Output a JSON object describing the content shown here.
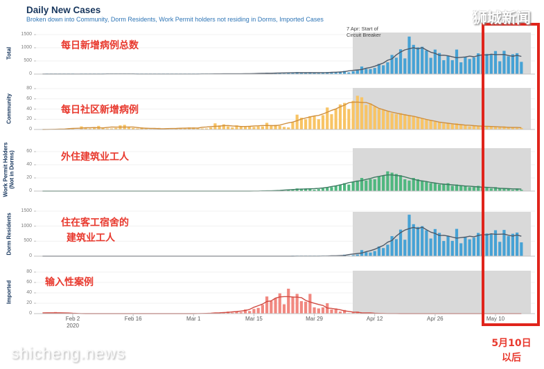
{
  "header": {
    "title": "Daily New Cases",
    "subtitle": "Broken down into Community, Dorm Residents, Work Permit holders not residing in Dorms, Imported Cases"
  },
  "watermarks": {
    "top_right": "狮城新闻",
    "bottom_left": "shicheng.news"
  },
  "annotations": {
    "circuit_breaker_line1": "7 Apr: Start of",
    "circuit_breaker_line2": "Circuit Breaker",
    "total": "每日新增病例总数",
    "community": "每日社区新增病例",
    "work_permit": "外住建筑业工人",
    "dorm_line1": "住在客工宿舍的",
    "dorm_line2": "建筑业工人",
    "imported": "输入性案例",
    "highlight_line1": "5月10日",
    "highlight_line2": "以后"
  },
  "colors": {
    "accent_red": "#e0241b",
    "annotation_red": "#e8392e",
    "title_navy": "#17365d",
    "subtitle_blue": "#2e75b6",
    "shaded_gray": "#d9d9d9"
  },
  "chart_data": {
    "type": "bar",
    "title": "Daily New Cases",
    "x_range": [
      "Jan 26",
      "May 16"
    ],
    "x_tick_labels": [
      "Feb 2",
      "Feb 16",
      "Mar 1",
      "Mar 15",
      "Mar 29",
      "Apr 12",
      "Apr 26",
      "May 10"
    ],
    "x_year_label": "2020",
    "grid": false,
    "legend": "none",
    "shaded_region": {
      "start_index": 72,
      "label": "7 Apr: Start of Circuit Breaker"
    },
    "panels": [
      {
        "id": "total",
        "row_label": "Total",
        "y_ticks": [
          0,
          500,
          1000,
          1500
        ],
        "ylim": [
          0,
          1580
        ],
        "bar_color": "#46a2d5",
        "line_color": "#4d5866",
        "values": [
          0,
          1,
          2,
          3,
          3,
          3,
          2,
          2,
          0,
          6,
          4,
          2,
          3,
          7,
          3,
          2,
          2,
          3,
          8,
          9,
          5,
          3,
          2,
          4,
          3,
          1,
          1,
          3,
          1,
          1,
          1,
          2,
          3,
          2,
          4,
          4,
          2,
          2,
          2,
          5,
          13,
          9,
          12,
          10,
          6,
          12,
          9,
          13,
          12,
          14,
          17,
          23,
          47,
          32,
          40,
          47,
          23,
          54,
          49,
          73,
          52,
          49,
          70,
          42,
          35,
          47,
          74,
          49,
          65,
          75,
          120,
          66,
          106,
          142,
          287,
          198,
          191,
          233,
          386,
          334,
          447,
          728,
          623,
          942,
          596,
          1426,
          1111,
          1016,
          1037,
          897,
          618,
          931,
          799,
          528,
          690,
          528,
          932,
          447,
          657,
          573,
          632,
          788,
          741,
          768,
          753,
          876,
          486,
          884,
          675,
          752,
          793,
          465
        ]
      },
      {
        "id": "community",
        "row_label": "Community",
        "y_ticks": [
          0,
          20,
          40,
          60,
          80
        ],
        "ylim": [
          0,
          80
        ],
        "bar_color": "#f8c465",
        "line_color": "#cf8f3e",
        "values": [
          0,
          0,
          0,
          0,
          1,
          1,
          1,
          2,
          0,
          6,
          4,
          2,
          3,
          7,
          3,
          2,
          2,
          3,
          8,
          9,
          5,
          3,
          2,
          4,
          3,
          1,
          1,
          3,
          1,
          1,
          1,
          2,
          3,
          2,
          4,
          4,
          2,
          2,
          2,
          4,
          12,
          8,
          10,
          6,
          4,
          8,
          6,
          5,
          7,
          5,
          6,
          6,
          13,
          8,
          9,
          7,
          5,
          4,
          14,
          29,
          23,
          20,
          26,
          26,
          20,
          28,
          43,
          30,
          40,
          49,
          52,
          40,
          56,
          66,
          63,
          48,
          51,
          45,
          40,
          38,
          35,
          32,
          30,
          32,
          30,
          28,
          25,
          24,
          22,
          20,
          18,
          15,
          14,
          12,
          12,
          10,
          12,
          10,
          8,
          6,
          8,
          6,
          8,
          6,
          6,
          5,
          4,
          6,
          4,
          4,
          3,
          3
        ]
      },
      {
        "id": "work_permit",
        "row_label": "Work Permit Holders",
        "row_label2": "(Not in Dorms)",
        "y_ticks": [
          0,
          20,
          40,
          60
        ],
        "ylim": [
          0,
          65
        ],
        "bar_color": "#4fb77f",
        "line_color": "#3c7a60",
        "values": [
          0,
          0,
          0,
          0,
          0,
          0,
          0,
          0,
          0,
          0,
          0,
          0,
          0,
          0,
          0,
          0,
          0,
          0,
          0,
          0,
          0,
          0,
          0,
          0,
          0,
          0,
          0,
          0,
          0,
          0,
          0,
          0,
          0,
          0,
          0,
          0,
          0,
          0,
          0,
          0,
          0,
          0,
          0,
          0,
          0,
          0,
          0,
          0,
          0,
          0,
          0,
          0,
          1,
          0,
          1,
          1,
          0,
          2,
          2,
          4,
          3,
          4,
          4,
          2,
          3,
          4,
          6,
          6,
          8,
          10,
          12,
          10,
          14,
          16,
          20,
          16,
          18,
          18,
          22,
          24,
          30,
          28,
          26,
          24,
          18,
          16,
          20,
          18,
          16,
          14,
          12,
          12,
          10,
          10,
          12,
          8,
          10,
          8,
          8,
          6,
          6,
          8,
          6,
          6,
          4,
          6,
          4,
          4,
          4,
          2,
          4,
          2
        ]
      },
      {
        "id": "dorm",
        "row_label": "Dorm Residents",
        "y_ticks": [
          0,
          500,
          1000,
          1500
        ],
        "ylim": [
          0,
          1500
        ],
        "bar_color": "#46a2d5",
        "line_color": "#4d5866",
        "values": [
          0,
          0,
          0,
          0,
          0,
          0,
          0,
          0,
          0,
          0,
          0,
          0,
          0,
          0,
          0,
          0,
          0,
          0,
          0,
          0,
          0,
          0,
          0,
          0,
          0,
          0,
          0,
          0,
          0,
          0,
          0,
          0,
          0,
          0,
          0,
          0,
          0,
          0,
          0,
          0,
          0,
          0,
          0,
          0,
          0,
          0,
          0,
          0,
          0,
          0,
          0,
          0,
          0,
          0,
          0,
          0,
          0,
          0,
          2,
          2,
          2,
          2,
          2,
          2,
          2,
          3,
          5,
          5,
          7,
          12,
          49,
          15,
          34,
          56,
          202,
          133,
          121,
          170,
          324,
          271,
          382,
          668,
          567,
          886,
          548,
          1382,
          1066,
          974,
          999,
          863,
          588,
          904,
          775,
          506,
          666,
          510,
          910,
          429,
          641,
          561,
          618,
          774,
          727,
          756,
          743,
          865,
          478,
          874,
          667,
          746,
          786,
          460
        ]
      },
      {
        "id": "imported",
        "row_label": "Imported",
        "y_ticks": [
          0,
          20,
          40,
          60,
          80
        ],
        "ylim": [
          0,
          82
        ],
        "bar_color": "#f18880",
        "line_color": "#d04b42",
        "values": [
          0,
          1,
          2,
          3,
          2,
          2,
          1,
          0,
          0,
          0,
          0,
          0,
          0,
          0,
          0,
          0,
          0,
          0,
          0,
          0,
          0,
          0,
          0,
          0,
          0,
          0,
          0,
          0,
          0,
          0,
          0,
          0,
          0,
          0,
          0,
          0,
          0,
          0,
          0,
          1,
          1,
          1,
          2,
          4,
          2,
          4,
          3,
          8,
          5,
          9,
          11,
          17,
          33,
          24,
          30,
          39,
          18,
          48,
          33,
          38,
          24,
          23,
          38,
          12,
          10,
          12,
          20,
          8,
          10,
          4,
          7,
          1,
          2,
          4,
          2,
          1,
          1,
          0,
          0,
          1,
          0,
          0,
          0,
          0,
          0,
          0,
          0,
          0,
          0,
          0,
          0,
          0,
          0,
          0,
          0,
          0,
          0,
          0,
          0,
          0,
          0,
          0,
          0,
          0,
          0,
          0,
          0,
          0,
          0,
          0,
          0,
          0
        ]
      }
    ]
  }
}
